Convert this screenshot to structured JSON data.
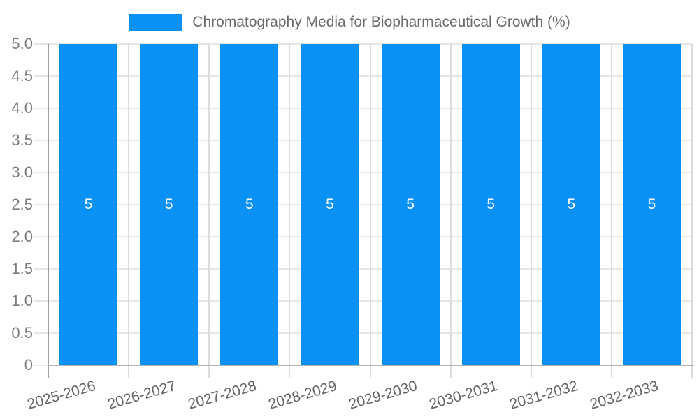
{
  "legend": {
    "label": "Chromatography Media for Biopharmaceutical Growth (%)",
    "swatch_color": "#0a91f5"
  },
  "chart_data": {
    "type": "bar",
    "title": "Chromatography Media for Biopharmaceutical Growth (%)",
    "categories": [
      "2025-2026",
      "2026-2027",
      "2027-2028",
      "2028-2029",
      "2029-2030",
      "2030-2031",
      "2031-2032",
      "2032-2033"
    ],
    "values": [
      5,
      5,
      5,
      5,
      5,
      5,
      5,
      5
    ],
    "bar_labels": [
      "5",
      "5",
      "5",
      "5",
      "5",
      "5",
      "5",
      "5"
    ],
    "xlabel": "",
    "ylabel": "",
    "ylim": [
      0,
      5
    ],
    "ytick_step": 0.5,
    "ytick_labels": [
      "5.0",
      "4.5",
      "4.0",
      "3.5",
      "3.0",
      "2.5",
      "2.0",
      "1.5",
      "1.0",
      "0.5",
      "0"
    ],
    "grid": true,
    "legend_position": "top-center",
    "bar_color": "#0a91f5",
    "bar_label_color": "#ffffff"
  }
}
